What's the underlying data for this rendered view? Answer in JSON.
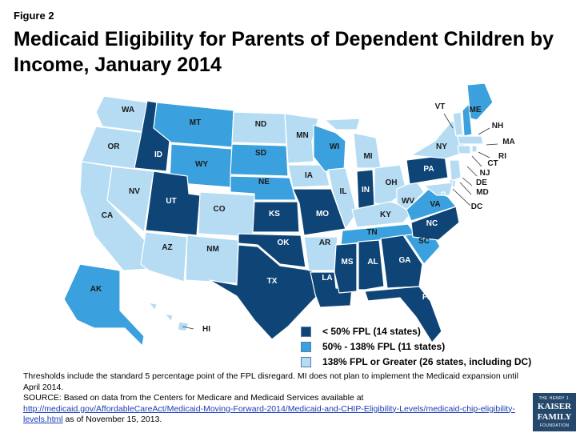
{
  "figure_label": "Figure 2",
  "title": "Medicaid Eligibility for Parents of Dependent Children by Income, January 2014",
  "colors": {
    "dark": "#0e4576",
    "medium": "#3aa0de",
    "light": "#b5dcf3"
  },
  "legend": [
    {
      "key": "dark",
      "label": "< 50% FPL (14 states)"
    },
    {
      "key": "medium",
      "label": "50% - 138% FPL (11 states)"
    },
    {
      "key": "light",
      "label": "138% FPL or Greater (26 states, including DC)"
    }
  ],
  "states": {
    "WA": "light",
    "OR": "light",
    "CA": "light",
    "ID": "dark",
    "NV": "light",
    "MT": "medium",
    "WY": "medium",
    "UT": "dark",
    "AZ": "light",
    "CO": "light",
    "NM": "light",
    "ND": "light",
    "SD": "medium",
    "NE": "medium",
    "KS": "dark",
    "OK": "dark",
    "TX": "dark",
    "MN": "light",
    "IA": "light",
    "MO": "dark",
    "AR": "light",
    "LA": "dark",
    "WI": "medium",
    "IL": "light",
    "MI": "light",
    "IN": "dark",
    "OH": "light",
    "KY": "light",
    "TN": "medium",
    "MS": "dark",
    "AL": "dark",
    "GA": "dark",
    "FL": "dark",
    "SC": "medium",
    "NC": "dark",
    "VA": "medium",
    "WV": "light",
    "PA": "dark",
    "NY": "light",
    "ME": "medium",
    "VT": "light",
    "NH": "medium",
    "MA": "light",
    "CT": "light",
    "RI": "light",
    "NJ": "light",
    "DE": "light",
    "MD": "light",
    "DC": "light",
    "AK": "medium",
    "HI": "light"
  },
  "notes": {
    "line1": "Thresholds include the standard 5 percentage point of the FPL disregard. MI does not plan to implement the Medicaid expansion until April 2014.",
    "source_prefix": "SOURCE: Based on data from the Centers for Medicare and Medicaid Services  available at",
    "source_link": "http://medicaid.gov/AffordableCareAct/Medicaid-Moving-Forward-2014/Medicaid-and-CHIP-Eligibility-Levels/medicaid-chip-eligibility-levels.html",
    "source_suffix": " as of November 15, 2013."
  },
  "logo": {
    "line1": "THE HENRY J.",
    "line2": "KAISER",
    "line3": "FAMILY",
    "line4": "FOUNDATION"
  }
}
